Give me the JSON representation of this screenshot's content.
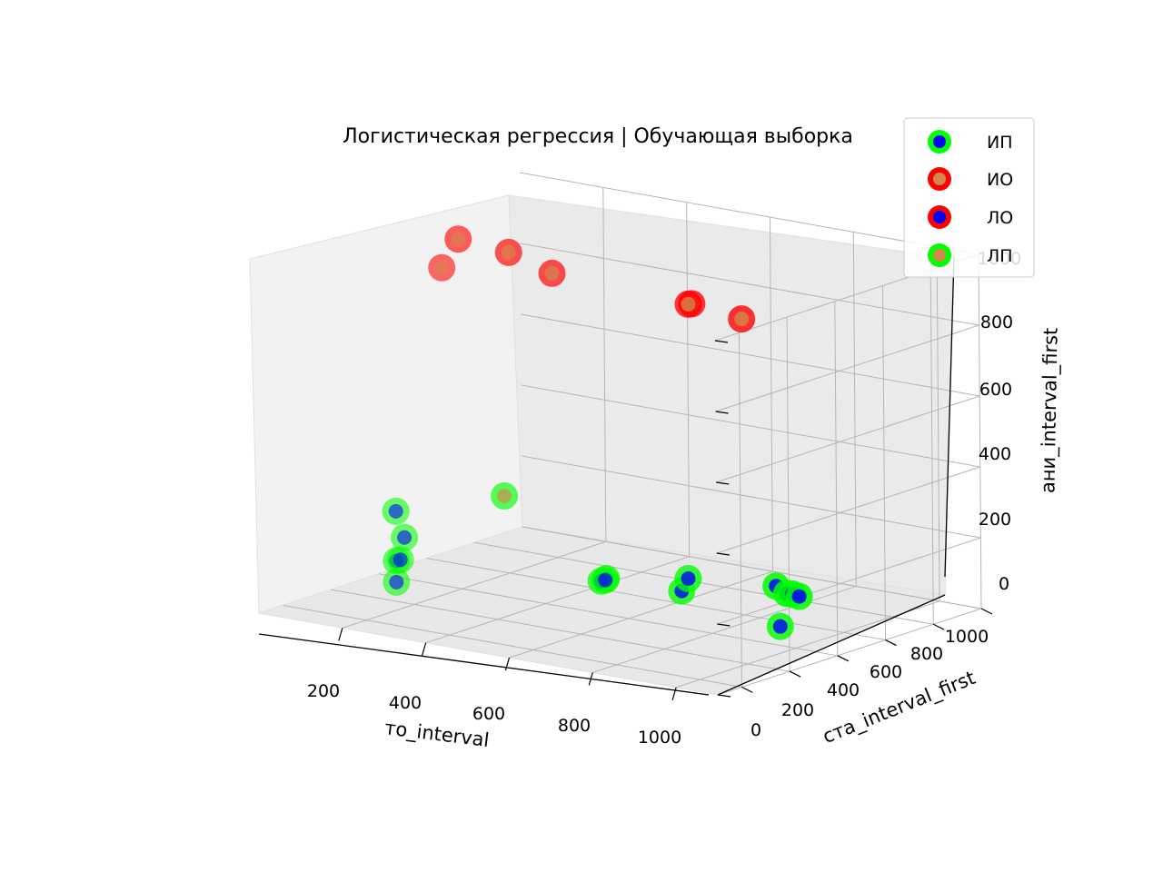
{
  "chart_data": {
    "type": "scatter",
    "title": "Логистическая регрессия | Обучающая выборка",
    "xlabel": "то_interval",
    "ylabel": "ста_interval_first",
    "zlabel": "ани_interval_first",
    "x_ticks": [
      "200",
      "400",
      "600",
      "800",
      "1000"
    ],
    "y_ticks": [
      "0",
      "200",
      "400",
      "600",
      "800",
      "1000"
    ],
    "z_ticks": [
      "0",
      "200",
      "400",
      "600",
      "800",
      "1000"
    ],
    "legend": {
      "position": "top-right",
      "entries": [
        {
          "label": "ИП",
          "ring": "#00ff00",
          "dot": "#0000ff"
        },
        {
          "label": "ИО",
          "ring": "#ff0000",
          "dot": "#d2884c"
        },
        {
          "label": "ЛО",
          "ring": "#ff0000",
          "dot": "#0000ff"
        },
        {
          "label": "ЛП",
          "ring": "#00ff00",
          "dot": "#d2884c"
        }
      ]
    },
    "series": [
      {
        "name": "ИП",
        "ring": "#00ff00",
        "dot": "#0000ff",
        "points": [
          {
            "x": 100,
            "y": 700,
            "z": 220
          },
          {
            "x": 120,
            "y": 700,
            "z": 150
          },
          {
            "x": 100,
            "y": 700,
            "z": 80
          },
          {
            "x": 110,
            "y": 700,
            "z": 85
          },
          {
            "x": 100,
            "y": 700,
            "z": 20
          },
          {
            "x": 430,
            "y": 420,
            "z": 30
          },
          {
            "x": 440,
            "y": 420,
            "z": 35
          },
          {
            "x": 460,
            "y": 450,
            "z": 50
          },
          {
            "x": 570,
            "y": 300,
            "z": 40
          },
          {
            "x": 560,
            "y": 310,
            "z": 5
          },
          {
            "x": 760,
            "y": 220,
            "z": 20
          },
          {
            "x": 780,
            "y": 230,
            "z": 25
          },
          {
            "x": 790,
            "y": 220,
            "z": 18
          },
          {
            "x": 700,
            "y": 160,
            "z": 15
          },
          {
            "x": 940,
            "y": 560,
            "z": 40
          }
        ]
      },
      {
        "name": "ИО",
        "ring": "#ff0000",
        "dot": "#d2884c",
        "points": [
          {
            "x": 220,
            "y": 640,
            "z": 1000
          },
          {
            "x": 330,
            "y": 900,
            "z": 1000
          },
          {
            "x": 410,
            "y": 580,
            "z": 930
          },
          {
            "x": 260,
            "y": 500,
            "z": 940
          },
          {
            "x": 650,
            "y": 430,
            "z": 860
          },
          {
            "x": 670,
            "y": 450,
            "z": 870
          },
          {
            "x": 870,
            "y": 590,
            "z": 900
          }
        ]
      },
      {
        "name": "ЛО",
        "ring": "#ff0000",
        "dot": "#0000ff",
        "points": []
      },
      {
        "name": "ЛП",
        "ring": "#00ff00",
        "dot": "#d2884c",
        "points": [
          {
            "x": 280,
            "y": 560,
            "z": 270
          }
        ]
      }
    ]
  }
}
